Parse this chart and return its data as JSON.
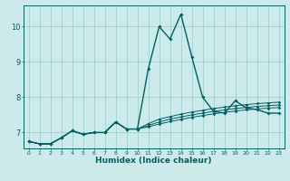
{
  "xlabel": "Humidex (Indice chaleur)",
  "ylabel": "",
  "background_color": "#cceaea",
  "grid_color": "#99cccc",
  "line_color": "#006060",
  "xlim": [
    -0.5,
    23.5
  ],
  "ylim": [
    6.55,
    10.6
  ],
  "xticks": [
    0,
    1,
    2,
    3,
    4,
    5,
    6,
    7,
    8,
    9,
    10,
    11,
    12,
    13,
    14,
    15,
    16,
    17,
    18,
    19,
    20,
    21,
    22,
    23
  ],
  "yticks": [
    7,
    8,
    9,
    10
  ],
  "series": [
    [
      6.75,
      6.68,
      6.68,
      6.85,
      7.05,
      6.95,
      7.0,
      7.0,
      7.3,
      7.1,
      7.1,
      8.8,
      10.0,
      9.65,
      10.35,
      9.15,
      8.0,
      7.6,
      7.55,
      7.9,
      7.7,
      7.65,
      7.55,
      7.55
    ],
    [
      6.75,
      6.68,
      6.68,
      6.85,
      7.05,
      6.95,
      7.0,
      7.0,
      7.3,
      7.1,
      7.1,
      7.25,
      7.38,
      7.45,
      7.52,
      7.58,
      7.63,
      7.68,
      7.72,
      7.76,
      7.79,
      7.82,
      7.84,
      7.86
    ],
    [
      6.75,
      6.68,
      6.68,
      6.85,
      7.05,
      6.95,
      7.0,
      7.0,
      7.3,
      7.1,
      7.1,
      7.2,
      7.3,
      7.38,
      7.44,
      7.5,
      7.55,
      7.6,
      7.64,
      7.68,
      7.71,
      7.74,
      7.76,
      7.78
    ],
    [
      6.75,
      6.68,
      6.68,
      6.85,
      7.05,
      6.95,
      7.0,
      7.0,
      7.3,
      7.1,
      7.1,
      7.16,
      7.24,
      7.31,
      7.37,
      7.43,
      7.48,
      7.53,
      7.57,
      7.61,
      7.64,
      7.67,
      7.69,
      7.71
    ]
  ]
}
